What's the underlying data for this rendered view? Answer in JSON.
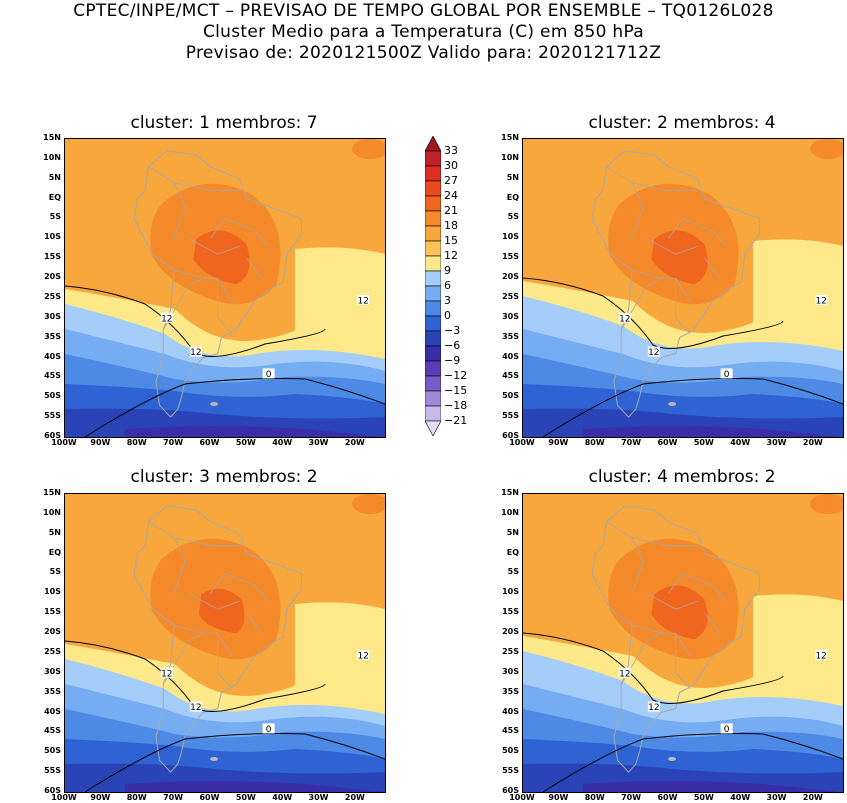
{
  "header": {
    "line1": "CPTEC/INPE/MCT – PREVISAO DE TEMPO GLOBAL POR ENSEMBLE – TQ0126L028",
    "line2": "Cluster Medio para a Temperatura (C) em 850 hPa",
    "line3": "Previsao de: 2020121500Z   Valido para: 2020121712Z"
  },
  "panels": [
    {
      "title": "cluster: 1   membros: 7",
      "contour_labels": [
        "12",
        "12",
        "12",
        "0"
      ],
      "variant": 1
    },
    {
      "title": "cluster: 2   membros: 4",
      "contour_labels": [
        "12",
        "12",
        "12",
        "0"
      ],
      "variant": 2
    },
    {
      "title": "cluster: 3   membros: 2",
      "contour_labels": [
        "12",
        "12",
        "12",
        "0"
      ],
      "variant": 3
    },
    {
      "title": "cluster: 4   membros: 2",
      "contour_labels": [
        "12",
        "12",
        "12",
        "0"
      ],
      "variant": 4
    }
  ],
  "axes": {
    "lat_labels": [
      "15N",
      "10N",
      "5N",
      "EQ",
      "5S",
      "10S",
      "15S",
      "20S",
      "25S",
      "30S",
      "35S",
      "40S",
      "45S",
      "50S",
      "55S",
      "60S"
    ],
    "lon_labels": [
      "100W",
      "90W",
      "80W",
      "70W",
      "60W",
      "50W",
      "40W",
      "30W",
      "20W"
    ]
  },
  "colorbar": {
    "labels": [
      "33",
      "30",
      "27",
      "24",
      "21",
      "18",
      "15",
      "12",
      "9",
      "6",
      "3",
      "0",
      "-3",
      "-6",
      "-9",
      "-12",
      "-15",
      "-18",
      "-21"
    ],
    "colors": [
      "#a01622",
      "#c0222b",
      "#dd2f24",
      "#ec4a1d",
      "#f0661e",
      "#f58a2a",
      "#f8a73c",
      "#fbc25a",
      "#fde88a",
      "#a4cdfa",
      "#76adf2",
      "#4d8ae6",
      "#2f63d3",
      "#2a44b8",
      "#3a2ea8",
      "#5a3cb6",
      "#7a5ac8",
      "#a08ad8",
      "#c6b8ea",
      "#e4dcf4"
    ]
  },
  "colors": {
    "land_outline": "#a8a8a8",
    "contour": "#000000"
  }
}
